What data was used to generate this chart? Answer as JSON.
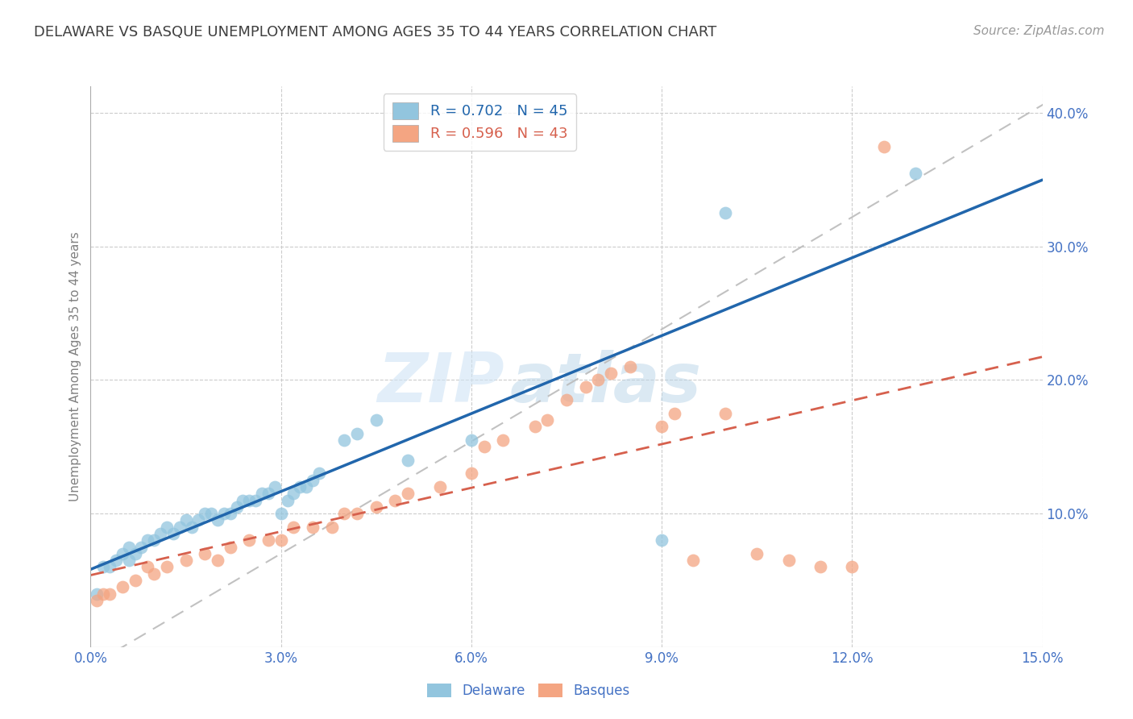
{
  "title": "DELAWARE VS BASQUE UNEMPLOYMENT AMONG AGES 35 TO 44 YEARS CORRELATION CHART",
  "source": "Source: ZipAtlas.com",
  "ylabel": "Unemployment Among Ages 35 to 44 years",
  "xlim": [
    0.0,
    0.15
  ],
  "ylim": [
    0.0,
    0.42
  ],
  "delaware_color": "#92c5de",
  "basque_color": "#f4a582",
  "delaware_line_color": "#2166ac",
  "basque_line_color": "#d6604d",
  "ref_line_color": "#bbbbbb",
  "R_delaware": 0.702,
  "N_delaware": 45,
  "R_basque": 0.596,
  "N_basque": 43,
  "delaware_x": [
    0.001,
    0.002,
    0.003,
    0.004,
    0.005,
    0.006,
    0.006,
    0.007,
    0.008,
    0.009,
    0.01,
    0.011,
    0.012,
    0.013,
    0.014,
    0.015,
    0.016,
    0.017,
    0.018,
    0.019,
    0.02,
    0.021,
    0.022,
    0.023,
    0.024,
    0.025,
    0.026,
    0.027,
    0.028,
    0.029,
    0.03,
    0.031,
    0.032,
    0.033,
    0.034,
    0.035,
    0.036,
    0.04,
    0.042,
    0.045,
    0.05,
    0.06,
    0.09,
    0.1,
    0.13
  ],
  "delaware_y": [
    0.04,
    0.06,
    0.06,
    0.065,
    0.07,
    0.065,
    0.075,
    0.07,
    0.075,
    0.08,
    0.08,
    0.085,
    0.09,
    0.085,
    0.09,
    0.095,
    0.09,
    0.095,
    0.1,
    0.1,
    0.095,
    0.1,
    0.1,
    0.105,
    0.11,
    0.11,
    0.11,
    0.115,
    0.115,
    0.12,
    0.1,
    0.11,
    0.115,
    0.12,
    0.12,
    0.125,
    0.13,
    0.155,
    0.16,
    0.17,
    0.14,
    0.155,
    0.08,
    0.325,
    0.355
  ],
  "basque_x": [
    0.001,
    0.002,
    0.003,
    0.005,
    0.007,
    0.009,
    0.01,
    0.012,
    0.015,
    0.018,
    0.02,
    0.022,
    0.025,
    0.028,
    0.03,
    0.032,
    0.035,
    0.038,
    0.04,
    0.042,
    0.045,
    0.048,
    0.05,
    0.055,
    0.06,
    0.062,
    0.065,
    0.07,
    0.072,
    0.075,
    0.078,
    0.08,
    0.082,
    0.085,
    0.09,
    0.092,
    0.095,
    0.1,
    0.105,
    0.11,
    0.115,
    0.12,
    0.125
  ],
  "basque_y": [
    0.035,
    0.04,
    0.04,
    0.045,
    0.05,
    0.06,
    0.055,
    0.06,
    0.065,
    0.07,
    0.065,
    0.075,
    0.08,
    0.08,
    0.08,
    0.09,
    0.09,
    0.09,
    0.1,
    0.1,
    0.105,
    0.11,
    0.115,
    0.12,
    0.13,
    0.15,
    0.155,
    0.165,
    0.17,
    0.185,
    0.195,
    0.2,
    0.205,
    0.21,
    0.165,
    0.175,
    0.065,
    0.175,
    0.07,
    0.065,
    0.06,
    0.06,
    0.375
  ],
  "watermark_zip": "ZIP",
  "watermark_atlas": "atlas",
  "background_color": "#ffffff",
  "grid_color": "#cccccc",
  "tick_color": "#4472c4",
  "title_color": "#404040",
  "ylabel_color": "#808080"
}
